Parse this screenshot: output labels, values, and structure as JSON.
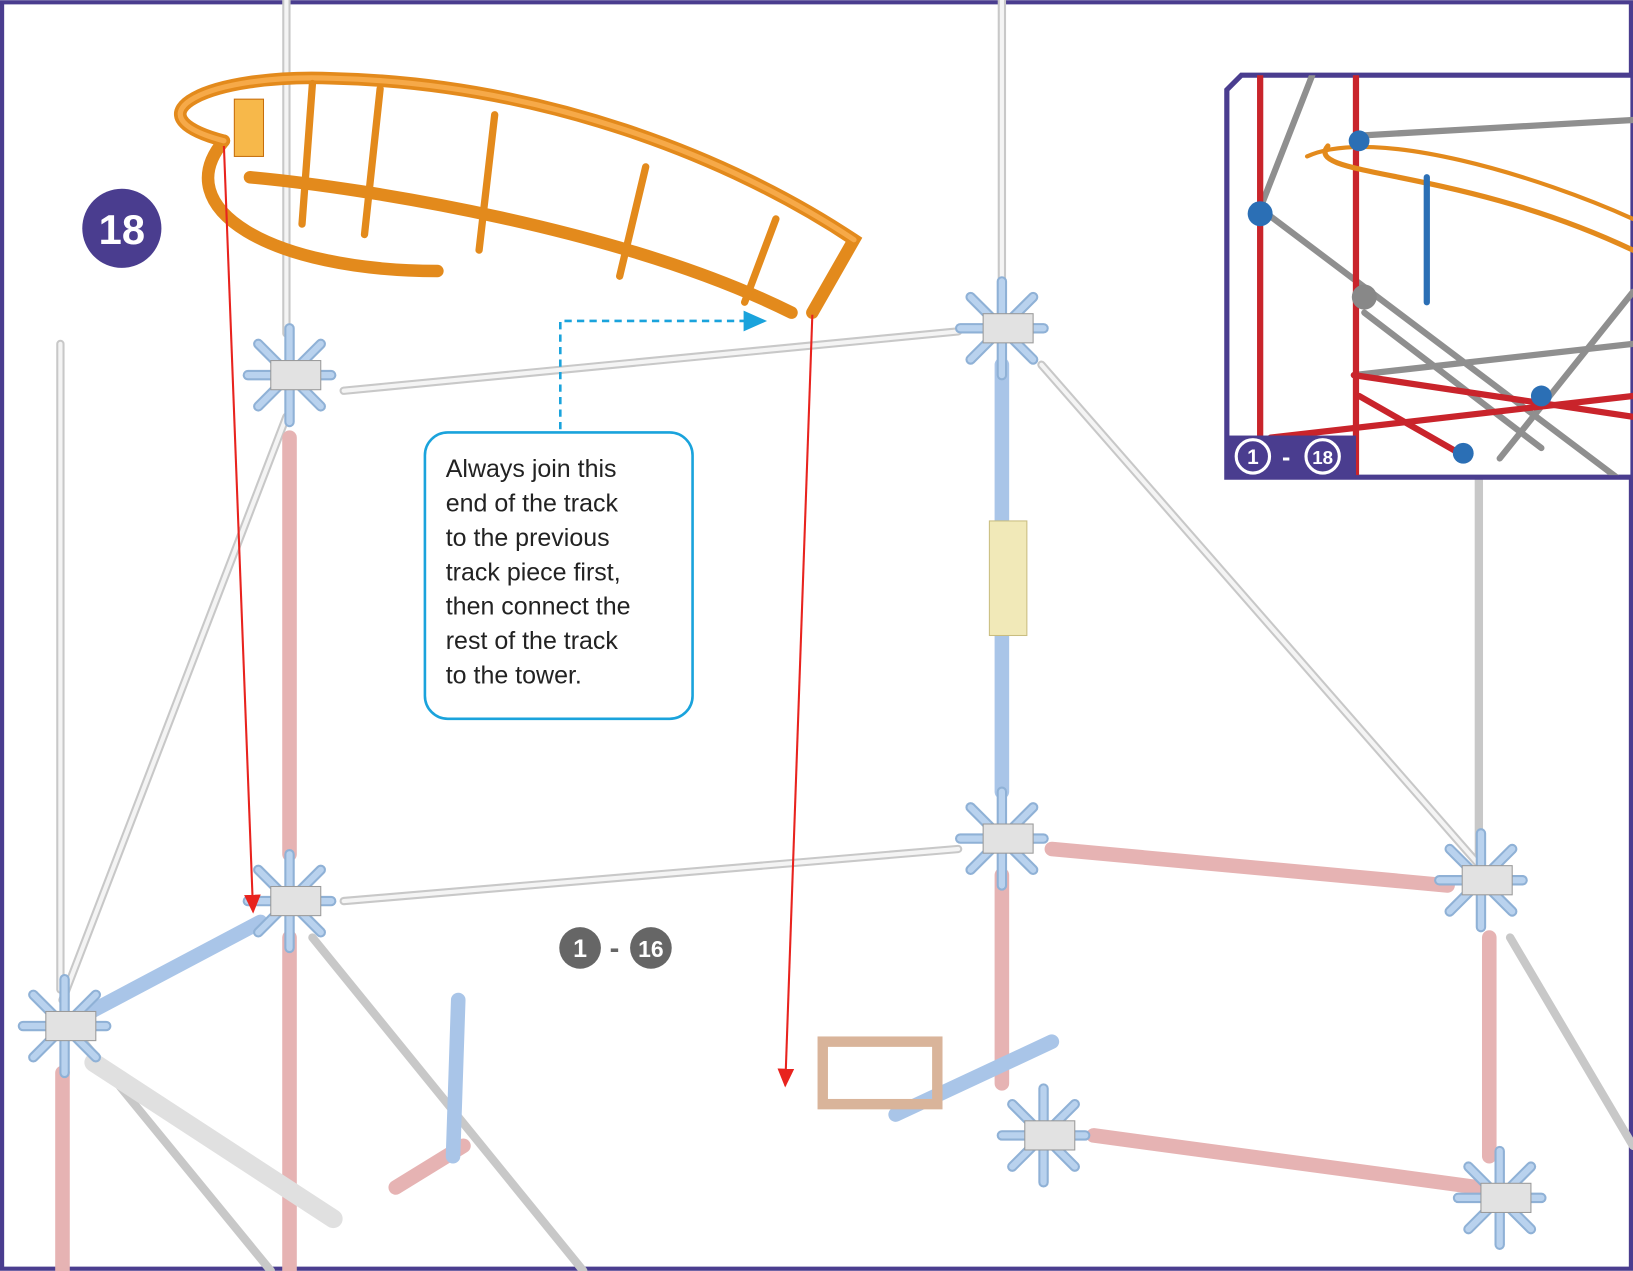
{
  "step": {
    "number": "18"
  },
  "callout": {
    "lines": [
      "Always join this",
      "end of the track",
      "to the previous",
      "track piece first,",
      "then connect the",
      "rest of the track",
      "to the tower."
    ]
  },
  "inset": {
    "range": {
      "from": "1",
      "separator": "-",
      "to": "18"
    }
  },
  "previous_steps": {
    "from": "1",
    "separator": "-",
    "to": "16"
  }
}
